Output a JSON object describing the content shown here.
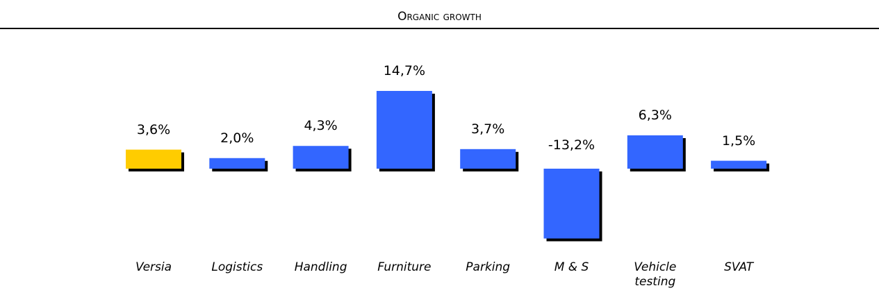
{
  "chart_data": {
    "type": "bar",
    "title": "Organic growth",
    "categories": [
      "Versia",
      "Logistics",
      "Handling",
      "Furniture",
      "Parking",
      "M & S",
      "Vehicle testing",
      "SVAT"
    ],
    "values": [
      3.6,
      2.0,
      4.3,
      14.7,
      3.7,
      -13.2,
      6.3,
      1.5
    ],
    "value_labels": [
      "3,6%",
      "2,0%",
      "4,3%",
      "14,7%",
      "3,7%",
      "-13,2%",
      "6,3%",
      "1,5%"
    ],
    "colors": [
      "#ffcc00",
      "#3366ff",
      "#3366ff",
      "#3366ff",
      "#3366ff",
      "#3366ff",
      "#3366ff",
      "#3366ff"
    ]
  }
}
